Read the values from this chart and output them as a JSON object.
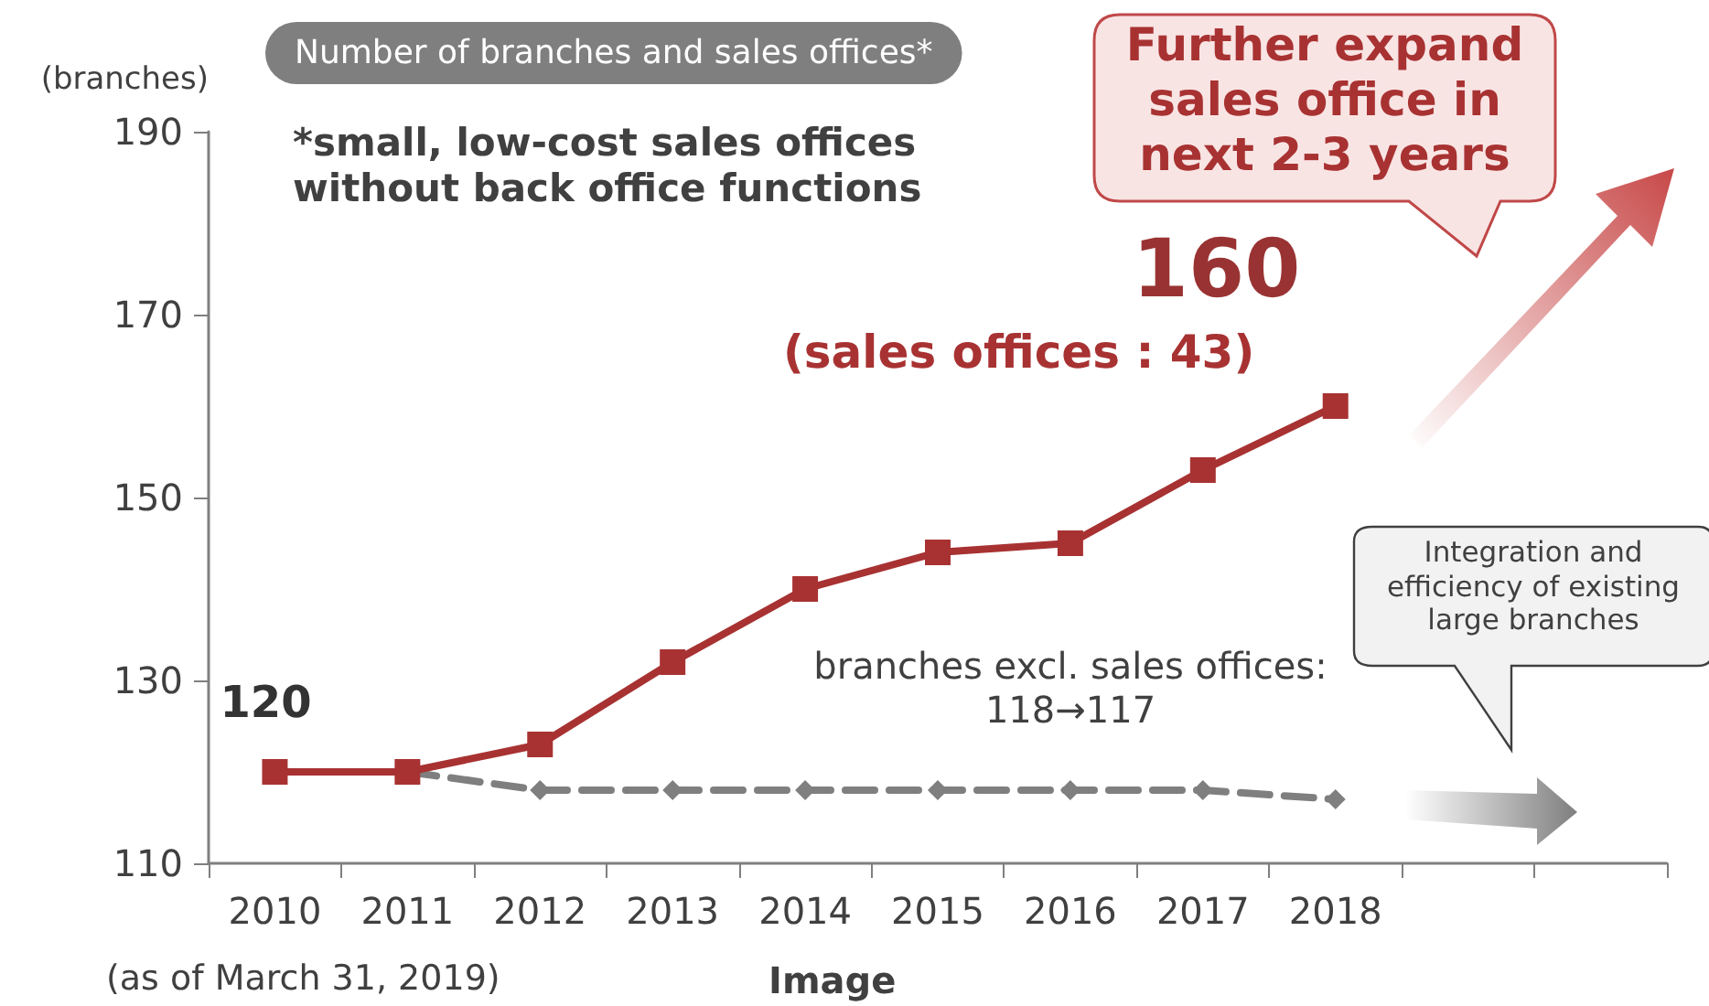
{
  "chart_data": {
    "type": "line",
    "title": "Number of branches and sales offices*",
    "ylabel": "(branches)",
    "categories": [
      "2010",
      "2011",
      "2012",
      "2013",
      "2014",
      "2015",
      "2016",
      "2017",
      "2018",
      null,
      null
    ],
    "series": [
      {
        "color": "#a83232",
        "marker": "square",
        "line_style": "solid",
        "values": [
          120,
          120,
          123,
          132,
          140,
          144,
          145,
          153,
          160,
          null,
          null
        ]
      },
      {
        "color": "#7f7f7f",
        "marker": "diamond",
        "line_style": "dashed",
        "values": [
          null,
          120,
          118,
          118,
          118,
          118,
          118,
          118,
          117,
          null,
          null
        ]
      }
    ],
    "ylim": [
      110,
      190
    ],
    "yticks": [
      110,
      130,
      150,
      170,
      190
    ],
    "annotations": [
      "*small, low-cost sales offices without back office functions",
      {
        "text": "120",
        "x": "2010",
        "y": 120
      },
      {
        "text": "160",
        "x": "2018",
        "y": 160
      },
      "(sales offices : 43)",
      "branches excl. sales offices: 118→117",
      "Further expand sales office in next 2-3 years",
      "Integration and efficiency of existing large branches",
      "(as of March 31, 2019)",
      "Image"
    ]
  }
}
